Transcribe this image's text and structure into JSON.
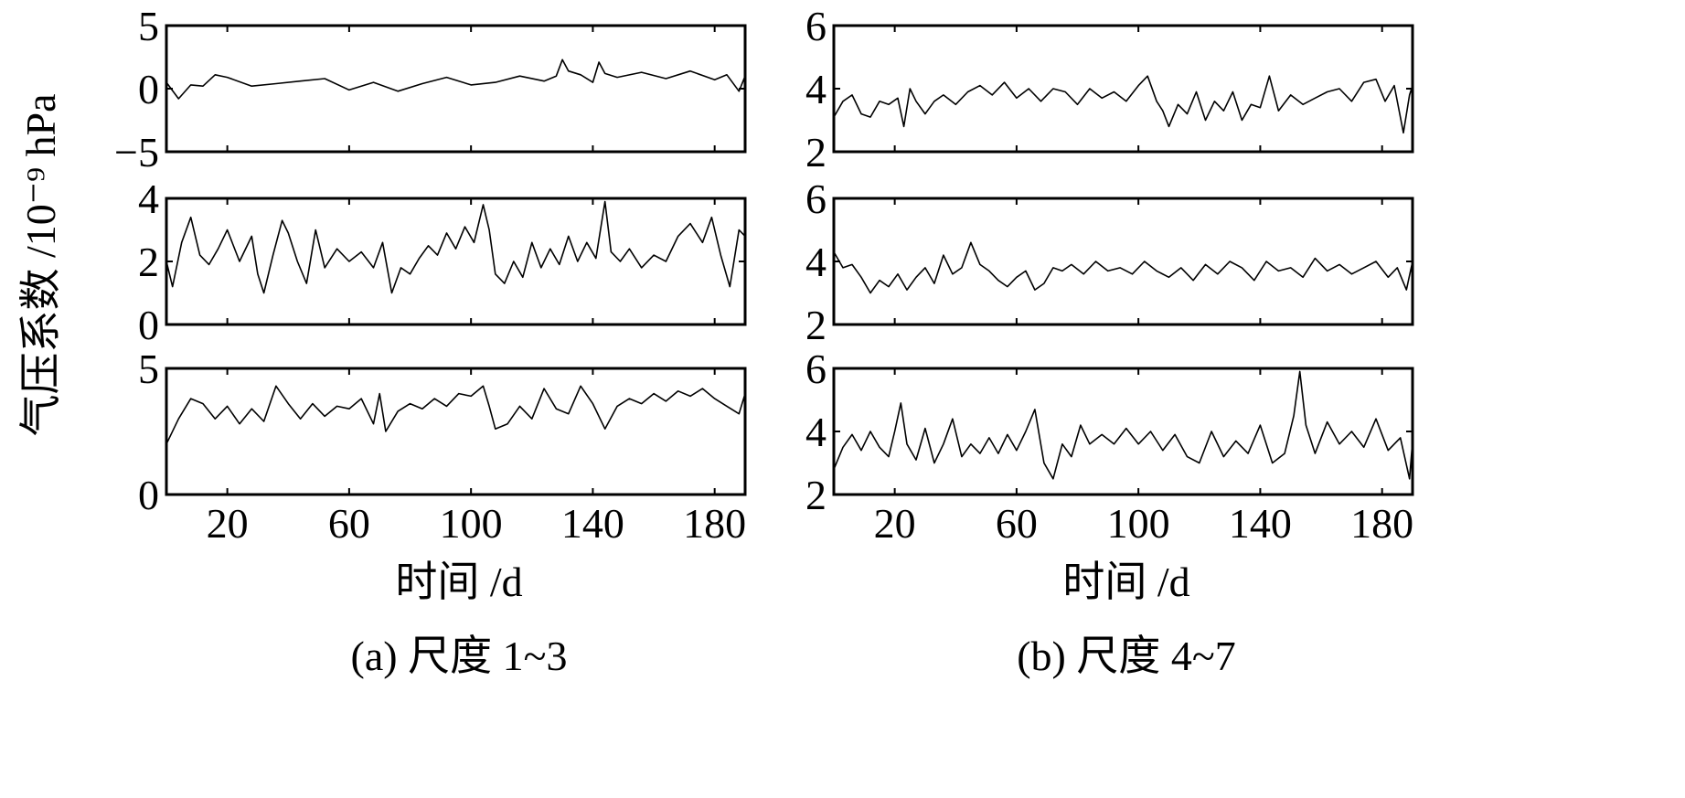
{
  "figure": {
    "ylabel": "气压系数 /10⁻⁹ hPa",
    "panels": [
      {
        "caption": "(a) 尺度 1~3",
        "xlabel": "时间 /d"
      },
      {
        "caption": "(b) 尺度 4~7",
        "xlabel": "时间 /d"
      }
    ]
  },
  "chart_data": [
    {
      "type": "line",
      "panel": "a",
      "row": 1,
      "xlim": [
        0,
        190
      ],
      "ylim": [
        -5,
        5
      ],
      "yticks": [
        -5,
        0,
        5
      ],
      "ytick_labels": [
        "−5",
        "0",
        "5"
      ],
      "xticks": [
        20,
        60,
        100,
        140,
        180
      ],
      "xtick_labels": [],
      "grid": false,
      "series": [
        {
          "x": [
            0,
            4,
            8,
            12,
            16,
            20,
            28,
            36,
            44,
            52,
            60,
            68,
            76,
            84,
            92,
            100,
            108,
            116,
            124,
            128,
            130,
            132,
            136,
            140,
            142,
            144,
            148,
            156,
            164,
            172,
            180,
            184,
            188,
            190
          ],
          "values": [
            0.5,
            -0.8,
            0.3,
            0.2,
            1.1,
            0.9,
            0.2,
            0.4,
            0.6,
            0.8,
            -0.1,
            0.5,
            -0.2,
            0.4,
            0.9,
            0.3,
            0.5,
            1.0,
            0.6,
            1.0,
            2.3,
            1.4,
            1.1,
            0.5,
            2.1,
            1.2,
            0.9,
            1.3,
            0.8,
            1.4,
            0.7,
            1.1,
            -0.2,
            1.0
          ]
        }
      ]
    },
    {
      "type": "line",
      "panel": "a",
      "row": 2,
      "xlim": [
        0,
        190
      ],
      "ylim": [
        0,
        4
      ],
      "yticks": [
        0,
        2,
        4
      ],
      "ytick_labels": [
        "0",
        "2",
        "4"
      ],
      "xticks": [
        20,
        60,
        100,
        140,
        180
      ],
      "xtick_labels": [],
      "grid": false,
      "series": [
        {
          "x": [
            0,
            2,
            5,
            8,
            11,
            14,
            17,
            20,
            24,
            28,
            30,
            32,
            35,
            38,
            40,
            43,
            46,
            49,
            52,
            56,
            60,
            64,
            68,
            71,
            74,
            77,
            80,
            83,
            86,
            89,
            92,
            95,
            98,
            101,
            104,
            106,
            108,
            111,
            114,
            117,
            120,
            123,
            126,
            129,
            132,
            135,
            138,
            141,
            144,
            146,
            149,
            152,
            156,
            160,
            164,
            168,
            172,
            176,
            179,
            182,
            185,
            188,
            190
          ],
          "values": [
            2.0,
            1.2,
            2.6,
            3.4,
            2.2,
            1.9,
            2.4,
            3.0,
            2.0,
            2.8,
            1.6,
            1.0,
            2.2,
            3.3,
            2.9,
            2.0,
            1.3,
            3.0,
            1.8,
            2.4,
            2.0,
            2.3,
            1.8,
            2.6,
            1.0,
            1.8,
            1.6,
            2.1,
            2.5,
            2.2,
            2.9,
            2.4,
            3.1,
            2.6,
            3.8,
            3.0,
            1.6,
            1.3,
            2.0,
            1.5,
            2.6,
            1.8,
            2.4,
            1.9,
            2.8,
            2.0,
            2.6,
            2.1,
            3.9,
            2.3,
            2.0,
            2.4,
            1.8,
            2.2,
            2.0,
            2.8,
            3.2,
            2.6,
            3.4,
            2.2,
            1.2,
            3.0,
            2.8
          ]
        }
      ]
    },
    {
      "type": "line",
      "panel": "a",
      "row": 3,
      "xlim": [
        0,
        190
      ],
      "ylim": [
        0,
        5
      ],
      "yticks": [
        0,
        5
      ],
      "ytick_labels": [
        "0",
        "5"
      ],
      "xticks": [
        20,
        60,
        100,
        140,
        180
      ],
      "xtick_labels": [
        "20",
        "60",
        "100",
        "140",
        "180"
      ],
      "xlabel": "时间 /d",
      "grid": false,
      "series": [
        {
          "x": [
            0,
            4,
            8,
            12,
            16,
            20,
            24,
            28,
            32,
            36,
            40,
            44,
            48,
            52,
            56,
            60,
            64,
            68,
            70,
            72,
            76,
            80,
            84,
            88,
            92,
            96,
            100,
            104,
            106,
            108,
            112,
            116,
            120,
            124,
            128,
            132,
            136,
            140,
            144,
            148,
            152,
            156,
            160,
            164,
            168,
            172,
            176,
            180,
            184,
            188,
            190
          ],
          "values": [
            2.0,
            3.0,
            3.8,
            3.6,
            3.0,
            3.5,
            2.8,
            3.4,
            2.9,
            4.3,
            3.6,
            3.0,
            3.6,
            3.1,
            3.5,
            3.4,
            3.8,
            2.8,
            4.0,
            2.5,
            3.3,
            3.6,
            3.4,
            3.8,
            3.5,
            4.0,
            3.9,
            4.3,
            3.5,
            2.6,
            2.8,
            3.5,
            3.0,
            4.2,
            3.4,
            3.2,
            4.3,
            3.6,
            2.6,
            3.5,
            3.8,
            3.6,
            4.0,
            3.7,
            4.1,
            3.9,
            4.2,
            3.8,
            3.5,
            3.2,
            4.0
          ]
        }
      ]
    },
    {
      "type": "line",
      "panel": "b",
      "row": 1,
      "xlim": [
        0,
        190
      ],
      "ylim": [
        2,
        6
      ],
      "yticks": [
        2,
        4,
        6
      ],
      "ytick_labels": [
        "2",
        "4",
        "6"
      ],
      "xticks": [
        20,
        60,
        100,
        140,
        180
      ],
      "xtick_labels": [],
      "grid": false,
      "series": [
        {
          "x": [
            0,
            3,
            6,
            9,
            12,
            15,
            18,
            21,
            23,
            25,
            27,
            30,
            33,
            36,
            40,
            44,
            48,
            52,
            56,
            60,
            64,
            68,
            72,
            76,
            80,
            84,
            88,
            92,
            96,
            100,
            103,
            106,
            108,
            110,
            113,
            116,
            119,
            122,
            125,
            128,
            131,
            134,
            137,
            140,
            143,
            146,
            150,
            154,
            158,
            162,
            166,
            170,
            174,
            178,
            181,
            184,
            187,
            189,
            190
          ],
          "values": [
            3.1,
            3.6,
            3.8,
            3.2,
            3.1,
            3.6,
            3.5,
            3.7,
            2.8,
            4.0,
            3.6,
            3.2,
            3.6,
            3.8,
            3.5,
            3.9,
            4.1,
            3.8,
            4.2,
            3.7,
            4.0,
            3.6,
            4.0,
            3.9,
            3.5,
            4.0,
            3.7,
            3.9,
            3.6,
            4.1,
            4.4,
            3.6,
            3.3,
            2.8,
            3.5,
            3.2,
            3.9,
            3.0,
            3.6,
            3.3,
            3.9,
            3.0,
            3.5,
            3.4,
            4.4,
            3.3,
            3.8,
            3.5,
            3.7,
            3.9,
            4.0,
            3.6,
            4.2,
            4.3,
            3.6,
            4.1,
            2.6,
            3.8,
            4.1
          ]
        }
      ]
    },
    {
      "type": "line",
      "panel": "b",
      "row": 2,
      "xlim": [
        0,
        190
      ],
      "ylim": [
        2,
        6
      ],
      "yticks": [
        2,
        4,
        6
      ],
      "ytick_labels": [
        "2",
        "4",
        "6"
      ],
      "xticks": [
        20,
        60,
        100,
        140,
        180
      ],
      "xtick_labels": [],
      "grid": false,
      "series": [
        {
          "x": [
            0,
            3,
            6,
            9,
            12,
            15,
            18,
            21,
            24,
            27,
            30,
            33,
            36,
            39,
            42,
            45,
            48,
            51,
            54,
            57,
            60,
            63,
            66,
            69,
            72,
            75,
            78,
            82,
            86,
            90,
            94,
            98,
            102,
            106,
            110,
            114,
            118,
            122,
            126,
            130,
            134,
            138,
            142,
            146,
            150,
            154,
            158,
            162,
            166,
            170,
            174,
            178,
            182,
            185,
            188,
            190
          ],
          "values": [
            4.3,
            3.8,
            3.9,
            3.5,
            3.0,
            3.4,
            3.2,
            3.6,
            3.1,
            3.5,
            3.8,
            3.3,
            4.2,
            3.6,
            3.8,
            4.6,
            3.9,
            3.7,
            3.4,
            3.2,
            3.5,
            3.7,
            3.1,
            3.3,
            3.8,
            3.7,
            3.9,
            3.6,
            4.0,
            3.7,
            3.8,
            3.6,
            4.0,
            3.7,
            3.5,
            3.8,
            3.4,
            3.9,
            3.6,
            4.0,
            3.8,
            3.4,
            4.0,
            3.7,
            3.8,
            3.5,
            4.1,
            3.7,
            3.9,
            3.6,
            3.8,
            4.0,
            3.5,
            3.8,
            3.1,
            4.0
          ]
        }
      ]
    },
    {
      "type": "line",
      "panel": "b",
      "row": 3,
      "xlim": [
        0,
        190
      ],
      "ylim": [
        2,
        6
      ],
      "yticks": [
        2,
        4,
        6
      ],
      "ytick_labels": [
        "2",
        "4",
        "6"
      ],
      "xticks": [
        20,
        60,
        100,
        140,
        180
      ],
      "xtick_labels": [
        "20",
        "60",
        "100",
        "140",
        "180"
      ],
      "xlabel": "时间 /d",
      "grid": false,
      "series": [
        {
          "x": [
            0,
            3,
            6,
            9,
            12,
            15,
            18,
            20,
            22,
            24,
            27,
            30,
            33,
            36,
            39,
            42,
            45,
            48,
            51,
            54,
            57,
            60,
            63,
            66,
            69,
            72,
            75,
            78,
            81,
            84,
            88,
            92,
            96,
            100,
            104,
            108,
            112,
            116,
            120,
            124,
            128,
            132,
            136,
            140,
            144,
            148,
            151,
            153,
            155,
            158,
            162,
            166,
            170,
            174,
            178,
            182,
            186,
            189,
            190
          ],
          "values": [
            2.8,
            3.5,
            3.9,
            3.4,
            4.0,
            3.5,
            3.2,
            4.0,
            4.9,
            3.6,
            3.1,
            4.1,
            3.0,
            3.6,
            4.4,
            3.2,
            3.6,
            3.3,
            3.8,
            3.3,
            3.9,
            3.4,
            4.0,
            4.7,
            3.0,
            2.5,
            3.6,
            3.2,
            4.2,
            3.6,
            3.9,
            3.6,
            4.1,
            3.6,
            4.0,
            3.4,
            3.9,
            3.2,
            3.0,
            4.0,
            3.2,
            3.7,
            3.3,
            4.2,
            3.0,
            3.3,
            4.5,
            5.9,
            4.2,
            3.3,
            4.3,
            3.6,
            4.0,
            3.5,
            4.4,
            3.4,
            3.8,
            2.5,
            3.7
          ]
        }
      ]
    }
  ]
}
